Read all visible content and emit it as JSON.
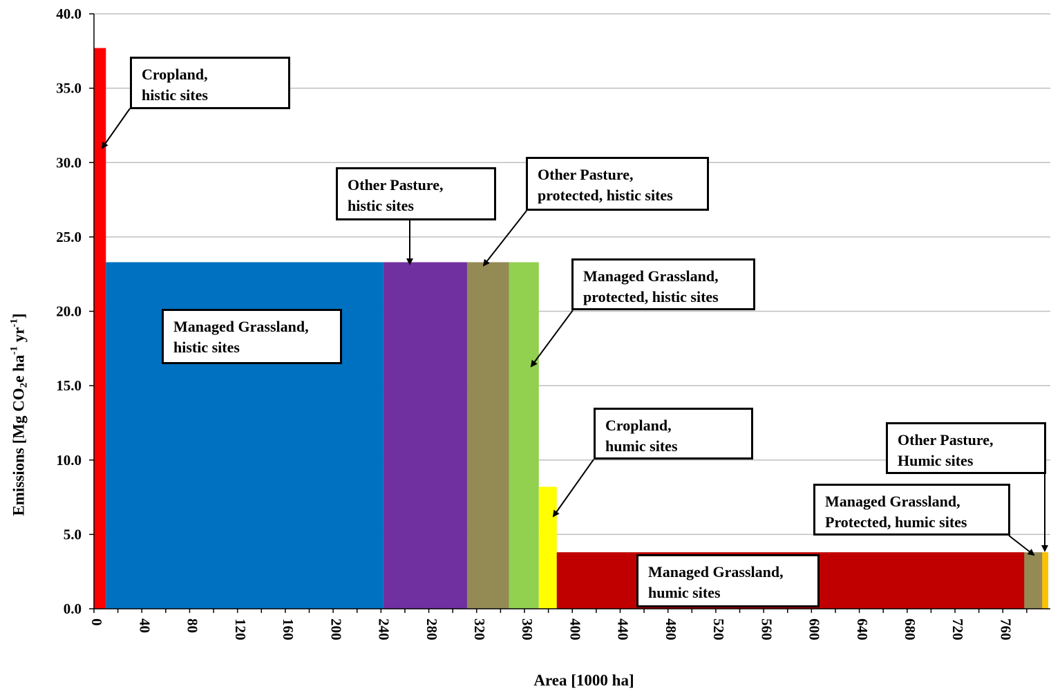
{
  "chart_data": {
    "type": "bar",
    "xlabel": "Area  [1000 ha]",
    "ylabel": {
      "prefix": "Emissions   [Mg CO",
      "sub": "2",
      "mid1": "e ha",
      "sup1": "-1",
      "mid2": " yr",
      "sup2": "-1",
      "suffix": "]"
    },
    "xlim": [
      0,
      795
    ],
    "ylim": [
      0,
      40
    ],
    "xticks": [
      0,
      40,
      80,
      120,
      160,
      200,
      240,
      280,
      320,
      360,
      400,
      440,
      480,
      520,
      560,
      600,
      640,
      680,
      720,
      760
    ],
    "xminor_step": 20,
    "yticks": [
      0,
      5,
      10,
      15,
      20,
      25,
      30,
      35,
      40
    ],
    "ytick_labels": [
      "0.0",
      "5.0",
      "10.0",
      "15.0",
      "20.0",
      "25.0",
      "30.0",
      "35.0",
      "40.0"
    ],
    "grid": "horizontal",
    "series": [
      {
        "label": [
          "Cropland,",
          "histic sites"
        ],
        "x_start": 0,
        "x_end": 10,
        "value": 37.7,
        "color": "#FF0000"
      },
      {
        "label": [
          "Managed Grassland,",
          "histic sites"
        ],
        "x_start": 10,
        "x_end": 242,
        "value": 23.3,
        "color": "#0070C0"
      },
      {
        "label": [
          "Other Pasture,",
          "histic sites"
        ],
        "x_start": 242,
        "x_end": 312,
        "value": 23.3,
        "color": "#7030A0"
      },
      {
        "label": [
          "Other Pasture,",
          "protected, histic sites"
        ],
        "x_start": 312,
        "x_end": 347,
        "value": 23.3,
        "color": "#948A54"
      },
      {
        "label": [
          "Managed Grassland,",
          "protected, histic sites"
        ],
        "x_start": 347,
        "x_end": 372,
        "value": 23.3,
        "color": "#92D050"
      },
      {
        "label": [
          "Cropland,",
          "humic sites"
        ],
        "x_start": 372,
        "x_end": 387,
        "value": 8.2,
        "color": "#FFFF00"
      },
      {
        "label": [
          "Managed Grassland,",
          "humic sites"
        ],
        "x_start": 387,
        "x_end": 778,
        "value": 3.8,
        "color": "#C00000"
      },
      {
        "label": [
          "Managed Grassland,",
          "Protected, humic sites"
        ],
        "x_start": 778,
        "x_end": 793,
        "value": 3.8,
        "color": "#948A54"
      },
      {
        "label": [
          "Other Pasture,",
          "Humic sites"
        ],
        "x_start": 793,
        "x_end": 798,
        "value": 3.8,
        "color": "#FFC000"
      }
    ]
  }
}
